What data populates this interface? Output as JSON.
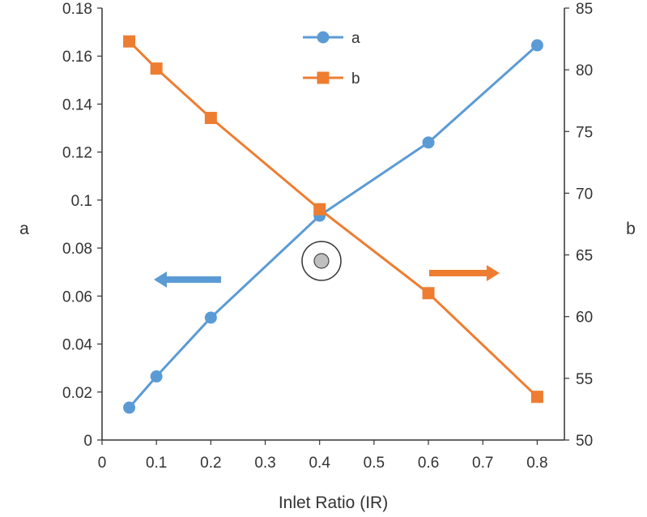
{
  "chart_data": {
    "type": "line",
    "xlabel": "Inlet Ratio (IR)",
    "ylabel_left": "a",
    "ylabel_right": "b",
    "x_ticks": [
      "0",
      "0.1",
      "0.2",
      "0.3",
      "0.4",
      "0.5",
      "0.6",
      "0.7",
      "0.8"
    ],
    "y_left_ticks": [
      "0",
      "0.02",
      "0.04",
      "0.06",
      "0.08",
      "0.1",
      "0.12",
      "0.14",
      "0.16",
      "0.18"
    ],
    "y_right_ticks": [
      "50",
      "55",
      "60",
      "65",
      "70",
      "75",
      "80",
      "85"
    ],
    "xlim": [
      0,
      0.85
    ],
    "ylim_left": [
      0,
      0.18
    ],
    "ylim_right": [
      50,
      85
    ],
    "grid": false,
    "legend_position": "top-center",
    "series": [
      {
        "name": "a",
        "axis": "left",
        "marker": "circle",
        "color": "#5B9BD5",
        "x": [
          0.05,
          0.1,
          0.2,
          0.4,
          0.6,
          0.8
        ],
        "y": [
          0.0135,
          0.0265,
          0.051,
          0.0935,
          0.124,
          0.1645
        ]
      },
      {
        "name": "b",
        "axis": "right",
        "marker": "square",
        "color": "#ED7D31",
        "x": [
          0.05,
          0.1,
          0.2,
          0.4,
          0.6,
          0.8
        ],
        "y": [
          82.3,
          80.1,
          76.1,
          68.7,
          61.9,
          53.5
        ]
      }
    ],
    "annotations": [
      {
        "type": "arrow",
        "direction": "left",
        "color": "#5B9BD5",
        "meaning": "series a uses left axis"
      },
      {
        "type": "arrow",
        "direction": "right",
        "color": "#ED7D31",
        "meaning": "series b uses right axis"
      }
    ]
  }
}
